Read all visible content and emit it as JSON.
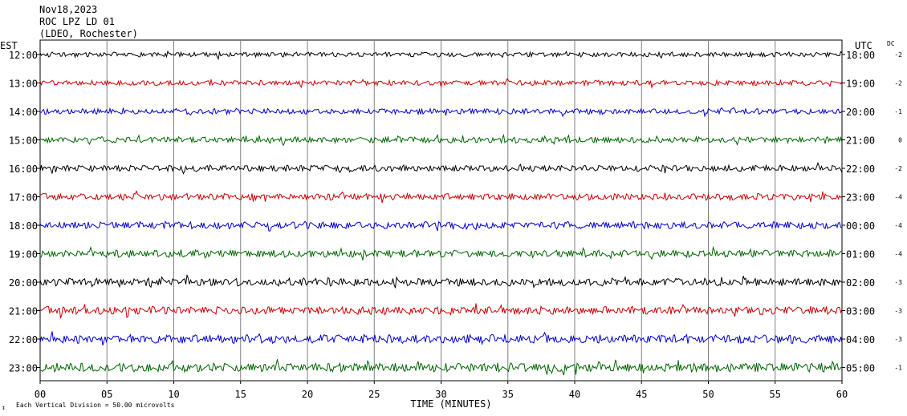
{
  "header": {
    "date": "Nov18,2023",
    "station": "ROC LPZ LD 01",
    "network": "(LDEO, Rochester)"
  },
  "left_tz": "EST",
  "right_tz": "UTC",
  "dc_header": "DC",
  "footer": {
    "scale_note": "Each Vertical Division =   50.00 microvolts"
  },
  "colors": [
    "#000000",
    "#cc0000",
    "#0000cc",
    "#006600"
  ],
  "chart_data": {
    "type": "line",
    "xlabel": "TIME (MINUTES)",
    "xlim": [
      0,
      60
    ],
    "x_ticks": [
      "00",
      "05",
      "10",
      "15",
      "20",
      "25",
      "30",
      "35",
      "40",
      "45",
      "50",
      "55",
      "60"
    ],
    "rows": [
      {
        "est": "12:00",
        "utc": "18:00",
        "dc": "-2",
        "color": "#000000"
      },
      {
        "est": "13:00",
        "utc": "19:00",
        "dc": "-2",
        "color": "#cc0000"
      },
      {
        "est": "14:00",
        "utc": "20:00",
        "dc": "-1",
        "color": "#0000cc"
      },
      {
        "est": "15:00",
        "utc": "21:00",
        "dc": "0",
        "color": "#006600"
      },
      {
        "est": "16:00",
        "utc": "22:00",
        "dc": "-2",
        "color": "#000000"
      },
      {
        "est": "17:00",
        "utc": "23:00",
        "dc": "-4",
        "color": "#cc0000"
      },
      {
        "est": "18:00",
        "utc": "00:00",
        "dc": "-4",
        "color": "#0000cc"
      },
      {
        "est": "19:00",
        "utc": "01:00",
        "dc": "-4",
        "color": "#006600"
      },
      {
        "est": "20:00",
        "utc": "02:00",
        "dc": "-3",
        "color": "#000000"
      },
      {
        "est": "21:00",
        "utc": "03:00",
        "dc": "-3",
        "color": "#cc0000"
      },
      {
        "est": "22:00",
        "utc": "04:00",
        "dc": "-3",
        "color": "#0000cc"
      },
      {
        "est": "23:00",
        "utc": "05:00",
        "dc": "-1",
        "color": "#006600"
      }
    ]
  }
}
